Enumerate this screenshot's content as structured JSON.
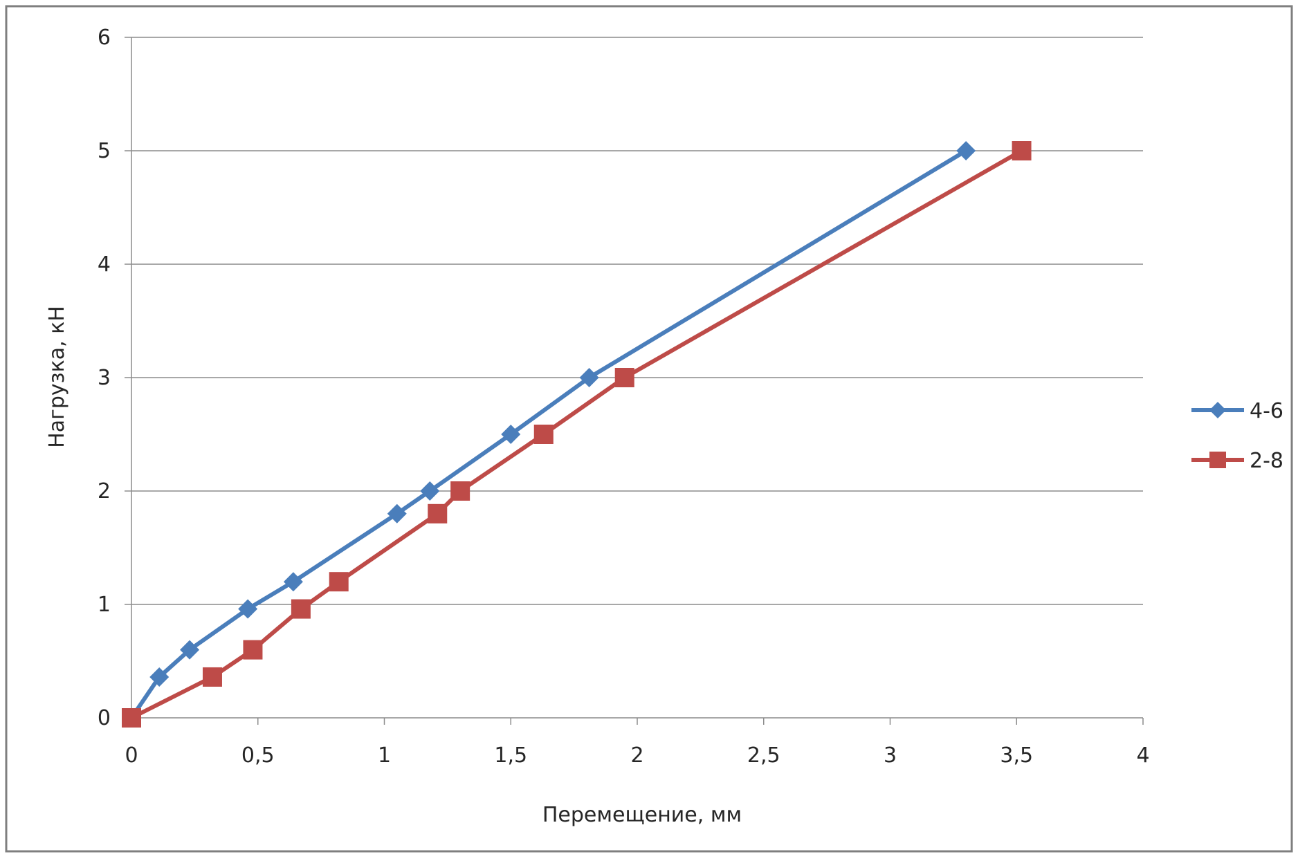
{
  "chart_data": {
    "type": "line",
    "title": "",
    "xlabel": "Перемещение, мм",
    "ylabel": "Нагрузка, кН",
    "xlim": [
      0,
      4
    ],
    "ylim": [
      0,
      6
    ],
    "x_ticks": [
      0,
      0.5,
      1,
      1.5,
      2,
      2.5,
      3,
      3.5,
      4
    ],
    "x_tick_labels": [
      "0",
      "0,5",
      "1",
      "1,5",
      "2",
      "2,5",
      "3",
      "3,5",
      "4"
    ],
    "y_ticks": [
      0,
      1,
      2,
      3,
      4,
      5,
      6
    ],
    "y_tick_labels": [
      "0",
      "1",
      "2",
      "3",
      "4",
      "5",
      "6"
    ],
    "grid": "horizontal major gridlines",
    "legend_position": "right",
    "series": [
      {
        "name": "4-6",
        "color": "#4a7ebb",
        "marker": "diamond",
        "points": [
          {
            "x": 0,
            "y": 0
          },
          {
            "x": 0.11,
            "y": 0.36
          },
          {
            "x": 0.23,
            "y": 0.6
          },
          {
            "x": 0.46,
            "y": 0.96
          },
          {
            "x": 0.64,
            "y": 1.2
          },
          {
            "x": 1.05,
            "y": 1.8
          },
          {
            "x": 1.18,
            "y": 2.0
          },
          {
            "x": 1.5,
            "y": 2.5
          },
          {
            "x": 1.81,
            "y": 3.0
          },
          {
            "x": 3.3,
            "y": 5.0
          }
        ]
      },
      {
        "name": "2-8",
        "color": "#be4b48",
        "marker": "square",
        "points": [
          {
            "x": 0,
            "y": 0
          },
          {
            "x": 0.32,
            "y": 0.36
          },
          {
            "x": 0.48,
            "y": 0.6
          },
          {
            "x": 0.67,
            "y": 0.96
          },
          {
            "x": 0.82,
            "y": 1.2
          },
          {
            "x": 1.21,
            "y": 1.8
          },
          {
            "x": 1.3,
            "y": 2.0
          },
          {
            "x": 1.63,
            "y": 2.5
          },
          {
            "x": 1.95,
            "y": 3.0
          },
          {
            "x": 3.52,
            "y": 5.0
          }
        ]
      }
    ]
  },
  "style": {
    "frame_color": "#7f7f7f",
    "grid_color": "#8c8c8c",
    "axis_color": "#8c8c8c",
    "text_color": "#262626",
    "background": "#ffffff"
  }
}
